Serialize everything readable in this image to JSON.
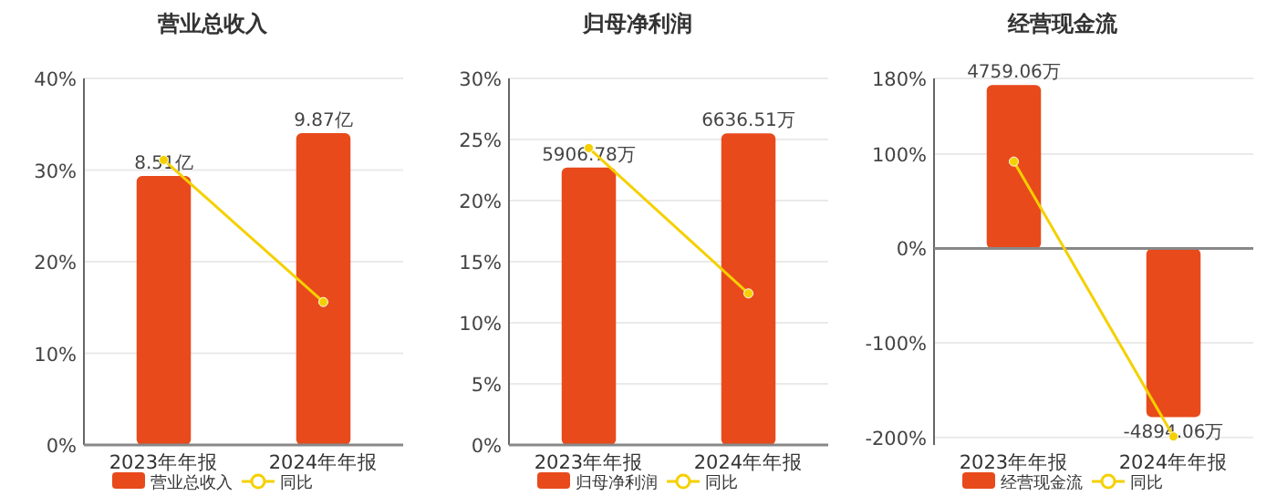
{
  "chart_data": [
    {
      "type": "bar",
      "title": "营业总收入",
      "categories": [
        "2023年年报",
        "2024年年报"
      ],
      "series": [
        {
          "name": "营业总收入",
          "axis": "y2",
          "color": "#e84a1c",
          "values": [
            8.51,
            9.87
          ],
          "value_labels": [
            "8.51亿",
            "9.87亿"
          ]
        },
        {
          "name": "同比",
          "type": "line",
          "color": "#f5d000",
          "values": [
            31.1,
            15.6
          ]
        }
      ],
      "ylim": [
        0,
        40
      ],
      "yticks": [
        {
          "value": 0,
          "label": "0%"
        },
        {
          "value": 10,
          "label": "10%"
        },
        {
          "value": 20,
          "label": "20%"
        },
        {
          "value": 30,
          "label": "30%"
        },
        {
          "value": 40,
          "label": "40%"
        }
      ],
      "y2lim": [
        0,
        11.6
      ],
      "grid": "y",
      "legend": "bottom",
      "marker": "circle"
    },
    {
      "type": "bar",
      "title": "归母净利润",
      "categories": [
        "2023年年报",
        "2024年年报"
      ],
      "series": [
        {
          "name": "归母净利润",
          "axis": "y2",
          "color": "#e84a1c",
          "values": [
            5906.78,
            6636.51
          ],
          "value_labels": [
            "5906.78万",
            "6636.51万"
          ]
        },
        {
          "name": "同比",
          "type": "line",
          "color": "#f5d000",
          "values": [
            24.3,
            12.4
          ]
        }
      ],
      "ylim": [
        0,
        30
      ],
      "yticks": [
        {
          "value": 0,
          "label": "0%"
        },
        {
          "value": 5,
          "label": "5%"
        },
        {
          "value": 10,
          "label": "10%"
        },
        {
          "value": 15,
          "label": "15%"
        },
        {
          "value": 20,
          "label": "20%"
        },
        {
          "value": 25,
          "label": "25%"
        },
        {
          "value": 30,
          "label": "30%"
        }
      ],
      "y2lim": [
        0,
        7807
      ],
      "grid": "y",
      "legend": "bottom",
      "marker": "circle"
    },
    {
      "type": "bar",
      "title": "经营现金流",
      "categories": [
        "2023年年报",
        "2024年年报"
      ],
      "series": [
        {
          "name": "经营现金流",
          "axis": "y2",
          "color": "#e84a1c",
          "values": [
            4759.06,
            -4894.06
          ],
          "value_labels": [
            "4759.06万",
            "-4894.06万"
          ]
        },
        {
          "name": "同比",
          "type": "line",
          "color": "#f5d000",
          "values": [
            92,
            -199
          ]
        }
      ],
      "ylim": [
        -208,
        180
      ],
      "yticks": [
        {
          "value": -200,
          "label": "-200%"
        },
        {
          "value": -100,
          "label": "-100%"
        },
        {
          "value": 0,
          "label": "0%"
        },
        {
          "value": 100,
          "label": "100%"
        },
        {
          "value": 180,
          "label": "180%"
        }
      ],
      "y2lim": [
        -5700,
        4950
      ],
      "grid": "y",
      "legend": "bottom",
      "marker": "circle"
    }
  ]
}
